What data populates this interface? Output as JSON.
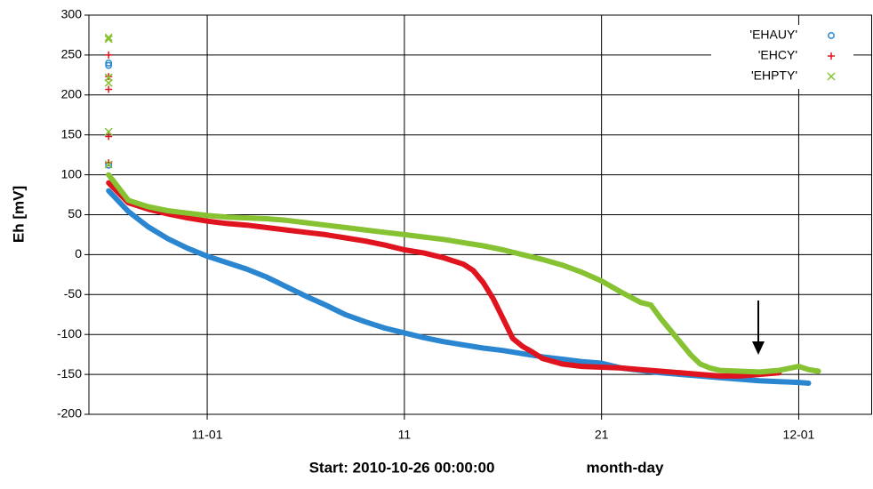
{
  "chart_data": {
    "type": "line",
    "ylabel": "Eh [mV]",
    "xlabel": "Start: 2010-10-26 00:00:00",
    "xlabel_unit": "month-day",
    "xlim": [
      0,
      39.7
    ],
    "ylim": [
      -200,
      300
    ],
    "xticks": [
      {
        "value": 6,
        "label": "11-01"
      },
      {
        "value": 16,
        "label": "11"
      },
      {
        "value": 26,
        "label": "21"
      },
      {
        "value": 36,
        "label": "12-01"
      }
    ],
    "yticks": [
      -200,
      -150,
      -100,
      -50,
      0,
      50,
      100,
      150,
      200,
      250,
      300
    ],
    "grid": true,
    "legend": "upper right",
    "series": [
      {
        "name": "'EHAUY'",
        "color": "#2a86d0",
        "marker": "circle",
        "x": [
          1,
          1,
          1,
          1,
          1,
          1,
          1,
          2,
          3,
          4,
          5,
          6,
          7,
          8,
          9,
          10,
          11,
          12,
          13,
          14,
          15,
          16,
          17,
          18,
          19,
          20,
          21,
          22,
          23,
          24,
          25,
          26,
          27,
          28,
          29,
          30,
          31,
          32,
          33,
          34,
          35,
          36,
          36.5
        ],
        "values": [
          240,
          null,
          237,
          null,
          112,
          null,
          80,
          54,
          35,
          20,
          8,
          -2,
          -10,
          -18,
          -28,
          -40,
          -52,
          -63,
          -75,
          -84,
          -92,
          -98,
          -104,
          -109,
          -113,
          -117,
          -120,
          -124,
          -128,
          -131,
          -134,
          -136,
          -142,
          -145,
          -148,
          -150,
          -152,
          -154,
          -156,
          -158,
          -159,
          -160,
          -161
        ]
      },
      {
        "name": "'EHCY'",
        "color": "#e0141e",
        "marker": "plus",
        "x": [
          1,
          1,
          1,
          1,
          1,
          1,
          1,
          1,
          1,
          1,
          1,
          2,
          3,
          4,
          5,
          6,
          7,
          8,
          9,
          10,
          11,
          12,
          13,
          14,
          15,
          16,
          17,
          18,
          19,
          19.5,
          20,
          20.5,
          21,
          21.5,
          22,
          22.5,
          23,
          24,
          25,
          26,
          27,
          28,
          29,
          30,
          31,
          32,
          33,
          34,
          35
        ],
        "values": [
          250,
          null,
          223,
          null,
          207,
          null,
          148,
          null,
          115,
          null,
          90,
          65,
          57,
          51,
          46,
          42,
          39,
          37,
          34,
          31,
          28,
          25,
          21,
          17,
          12,
          6,
          2,
          -4,
          -12,
          -20,
          -35,
          -55,
          -80,
          -105,
          -115,
          -122,
          -130,
          -137,
          -140,
          -141,
          -142,
          -144,
          -146,
          -148,
          -150,
          -152,
          -152,
          -150,
          -148
        ]
      },
      {
        "name": "'EHPTY'",
        "color": "#86c232",
        "marker": "cross",
        "x": [
          1,
          1,
          1,
          1,
          1,
          1,
          1,
          1,
          1,
          1,
          1,
          1,
          1,
          2,
          3,
          4,
          5,
          6,
          7,
          8,
          9,
          10,
          11,
          12,
          13,
          14,
          15,
          16,
          17,
          18,
          19,
          20,
          21,
          22,
          23,
          24,
          25,
          26,
          27,
          28,
          28.5,
          29,
          29.5,
          30,
          30.5,
          31,
          31.5,
          32,
          33,
          34,
          35,
          36,
          36.5,
          37
        ],
        "values": [
          272,
          null,
          270,
          null,
          222,
          null,
          215,
          null,
          154,
          null,
          113,
          null,
          100,
          68,
          60,
          55,
          52,
          49,
          47,
          46,
          45,
          43,
          40,
          37,
          34,
          31,
          28,
          25,
          22,
          19,
          15,
          11,
          6,
          0,
          -6,
          -13,
          -22,
          -33,
          -47,
          -60,
          -63,
          -80,
          -95,
          -110,
          -125,
          -137,
          -142,
          -145,
          -146,
          -147,
          -145,
          -140,
          -144,
          -146
        ]
      }
    ]
  }
}
